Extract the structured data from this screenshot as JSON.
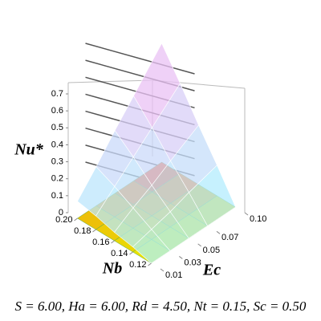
{
  "chart_data": {
    "type": "surface3d",
    "zlabel": "Nu*",
    "xlabel": "Nb",
    "ylabel": "Ec",
    "caption": "S = 6.00, Ha = 6.00, Rd = 4.50, Nt = 0.15, Sc = 0.50",
    "x": [
      0.12,
      0.14,
      0.16,
      0.18,
      0.2
    ],
    "y": [
      0.01,
      0.03,
      0.05,
      0.07,
      0.1
    ],
    "z": [
      [
        0,
        0,
        0,
        0,
        0
      ],
      [
        0.03,
        0.06,
        0.09,
        0.13,
        0.18
      ],
      [
        0.05,
        0.12,
        0.18,
        0.25,
        0.35
      ],
      [
        0.08,
        0.18,
        0.28,
        0.38,
        0.53
      ],
      [
        0.1,
        0.23,
        0.37,
        0.5,
        0.7
      ]
    ],
    "xlim": [
      0.11,
      0.21
    ],
    "ylim": [
      0.01,
      0.1
    ],
    "zlim": [
      0,
      0.7
    ],
    "xticks": [
      {
        "value": 0.2,
        "label": "0.20"
      },
      0.18,
      0.16,
      0.14,
      0.12
    ],
    "yticks": [
      0.01,
      0.03,
      0.05,
      0.07,
      {
        "value": 0.1,
        "label": "0.10"
      }
    ],
    "zticks": [
      0,
      0.1,
      0.2,
      0.3,
      0.4,
      0.5,
      0.6,
      0.7
    ],
    "surface_colors": [
      "#aaf4ff",
      "#ffb0f0"
    ],
    "floor_colors": [
      "#e8e800",
      "#ff2a2a"
    ],
    "grid": true
  }
}
